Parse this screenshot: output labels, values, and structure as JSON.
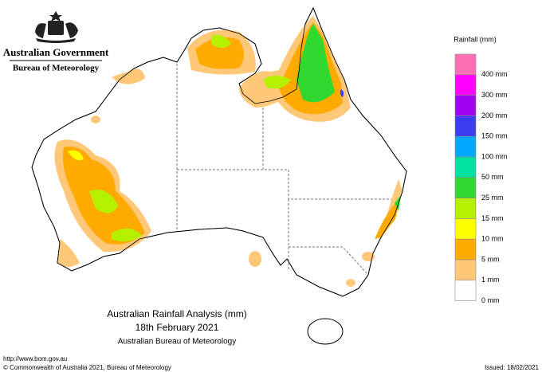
{
  "header": {
    "government": "Australian Government",
    "bureau": "Bureau of Meteorology"
  },
  "legend": {
    "title": "Rainfall (mm)",
    "labels": [
      "400 mm",
      "300 mm",
      "200 mm",
      "150 mm",
      "100 mm",
      "50 mm",
      "25 mm",
      "15 mm",
      "10 mm",
      "5 mm",
      "1 mm",
      "0 mm"
    ],
    "colors": [
      "#ff6fb5",
      "#ff00ff",
      "#a000f0",
      "#3c3cf0",
      "#00a8ff",
      "#00e0a0",
      "#30d830",
      "#b4f000",
      "#ffff00",
      "#ffaa00",
      "#ffc878",
      "#ffffff"
    ]
  },
  "title": {
    "line1": "Australian Rainfall Analysis (mm)",
    "line2": "18th February 2021",
    "line3": "Australian Bureau of Meteorology"
  },
  "footer": {
    "url": "http://www.bom.gov.au",
    "copyright": "© Commonwealth of Australia 2021, Bureau of Meteorology",
    "issued": "Issued: 18/02/2021"
  }
}
